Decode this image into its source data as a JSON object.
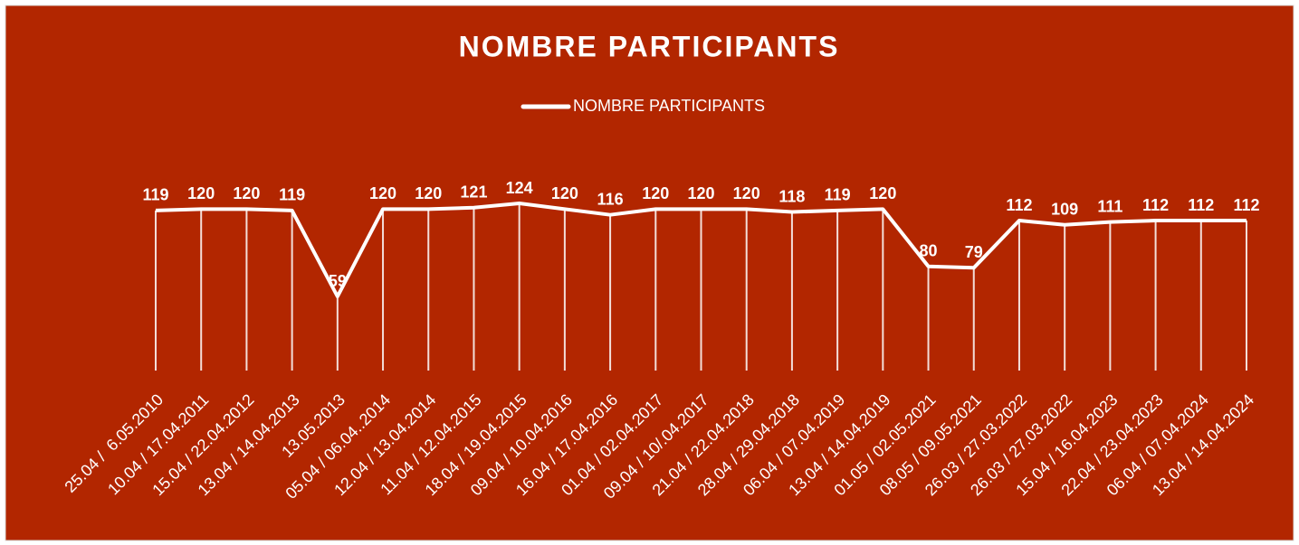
{
  "chart_data": {
    "type": "line",
    "title": "NOMBRE PARTICIPANTS",
    "categories": [
      "25.04 /  6.05.2010",
      "10.04 / 17.04.2011",
      "15.04 / 22.04.2012",
      "13.04 / 14.04.2013",
      "13.05.2013",
      "05.04 / 06.04..2014",
      "12.04 / 13.04.2014",
      "11.04 / 12.04.2015",
      "18.04 / 19.04.2015",
      "09.04 / 10.04.2016",
      "16.04 / 17.04.2016",
      "01.04 / 02.04.2017",
      "09.04 / 10/.04.2017",
      "21.04 / 22.04.2018",
      "28.04 / 29.04.2018",
      "06.04 / 07.04.2019",
      "13.04 / 14.04.2019",
      "01.05 / 02.05.2021",
      "08.05 / 09.05.2021",
      "26.03 / 27.03.2022",
      "26.03 / 27.03.2022",
      "15.04 / 16.04.2023",
      "22.04 / 23.04.2023",
      "06.04 / 07.04.2024",
      "13.04 / 14.04.2024"
    ],
    "series": [
      {
        "name": "NOMBRE PARTICIPANTS",
        "color": "#ffffff",
        "values": [
          119,
          120,
          120,
          119,
          59,
          120,
          120,
          121,
          124,
          120,
          116,
          120,
          120,
          120,
          118,
          119,
          120,
          80,
          79,
          112,
          109,
          111,
          112,
          112,
          112
        ]
      }
    ],
    "background": "#b22600",
    "legend": "top"
  }
}
